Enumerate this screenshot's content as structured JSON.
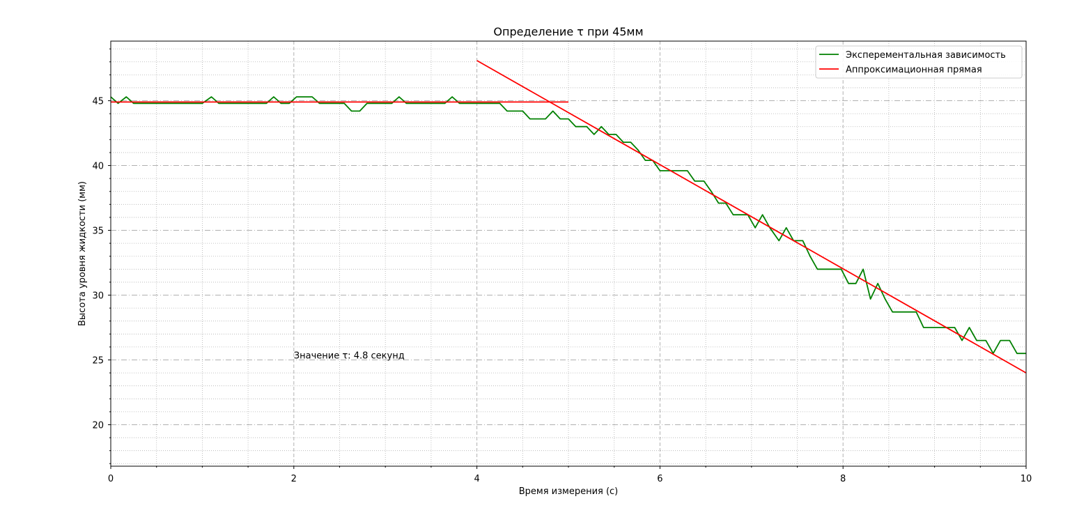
{
  "chart_data": {
    "type": "line",
    "title": "Определение τ при 45мм",
    "xlabel": "Время измерения (с)",
    "ylabel": "Высота уровня жидкости (мм)",
    "xlim": [
      0,
      10
    ],
    "ylim": [
      16.8,
      49.6
    ],
    "x_ticks": [
      0,
      2,
      4,
      6,
      8,
      10
    ],
    "x_tick_labels": [
      "0",
      "2",
      "4",
      "6",
      "8",
      "10"
    ],
    "y_ticks": [
      20,
      25,
      30,
      35,
      40,
      45
    ],
    "y_tick_labels": [
      "20",
      "25",
      "30",
      "35",
      "40",
      "45"
    ],
    "grid": true,
    "legend_position": "top-right",
    "annotation": {
      "text": "Значение τ: 4.8 секунд",
      "x": 2.0,
      "y": 25.1
    },
    "series": [
      {
        "name": "Эксперементальная зависимость",
        "color": "#008000",
        "points": [
          [
            0.0,
            45.3
          ],
          [
            0.08,
            44.8
          ],
          [
            0.17,
            45.3
          ],
          [
            0.25,
            44.8
          ],
          [
            1.0,
            44.8
          ],
          [
            1.1,
            45.3
          ],
          [
            1.18,
            44.8
          ],
          [
            1.7,
            44.8
          ],
          [
            1.78,
            45.3
          ],
          [
            1.86,
            44.8
          ],
          [
            1.95,
            44.8
          ],
          [
            2.03,
            45.3
          ],
          [
            2.2,
            45.3
          ],
          [
            2.28,
            44.8
          ],
          [
            2.55,
            44.8
          ],
          [
            2.63,
            44.2
          ],
          [
            2.72,
            44.2
          ],
          [
            2.8,
            44.8
          ],
          [
            3.07,
            44.8
          ],
          [
            3.15,
            45.3
          ],
          [
            3.23,
            44.8
          ],
          [
            3.65,
            44.8
          ],
          [
            3.73,
            45.3
          ],
          [
            3.81,
            44.8
          ],
          [
            4.25,
            44.8
          ],
          [
            4.33,
            44.2
          ],
          [
            4.5,
            44.2
          ],
          [
            4.58,
            43.6
          ],
          [
            4.75,
            43.6
          ],
          [
            4.83,
            44.2
          ],
          [
            4.91,
            43.6
          ],
          [
            5.0,
            43.6
          ],
          [
            5.08,
            43.0
          ],
          [
            5.2,
            43.0
          ],
          [
            5.28,
            42.4
          ],
          [
            5.36,
            43.0
          ],
          [
            5.44,
            42.4
          ],
          [
            5.52,
            42.4
          ],
          [
            5.6,
            41.8
          ],
          [
            5.68,
            41.8
          ],
          [
            5.76,
            41.2
          ],
          [
            5.84,
            40.4
          ],
          [
            5.92,
            40.4
          ],
          [
            6.0,
            39.6
          ],
          [
            6.3,
            39.6
          ],
          [
            6.38,
            38.8
          ],
          [
            6.48,
            38.8
          ],
          [
            6.56,
            38.0
          ],
          [
            6.64,
            37.1
          ],
          [
            6.72,
            37.1
          ],
          [
            6.8,
            36.2
          ],
          [
            6.96,
            36.2
          ],
          [
            7.04,
            35.2
          ],
          [
            7.12,
            36.2
          ],
          [
            7.2,
            35.2
          ],
          [
            7.3,
            34.2
          ],
          [
            7.38,
            35.2
          ],
          [
            7.46,
            34.2
          ],
          [
            7.56,
            34.2
          ],
          [
            7.64,
            33.0
          ],
          [
            7.72,
            32.0
          ],
          [
            7.98,
            32.0
          ],
          [
            8.06,
            30.9
          ],
          [
            8.14,
            30.9
          ],
          [
            8.22,
            32.0
          ],
          [
            8.3,
            29.7
          ],
          [
            8.38,
            30.9
          ],
          [
            8.46,
            29.7
          ],
          [
            8.54,
            28.7
          ],
          [
            8.8,
            28.7
          ],
          [
            8.88,
            27.5
          ],
          [
            9.22,
            27.5
          ],
          [
            9.3,
            26.5
          ],
          [
            9.38,
            27.5
          ],
          [
            9.46,
            26.5
          ],
          [
            9.56,
            26.5
          ],
          [
            9.64,
            25.5
          ],
          [
            9.72,
            26.5
          ],
          [
            9.82,
            26.5
          ],
          [
            9.9,
            25.5
          ],
          [
            10.0,
            25.5
          ]
        ]
      },
      {
        "name": "Аппроксимационная прямая",
        "color": "#ff0000",
        "segments": [
          [
            [
              0,
              44.9
            ],
            [
              5,
              44.9
            ]
          ],
          [
            [
              4,
              48.1
            ],
            [
              10,
              24.0
            ]
          ]
        ]
      }
    ]
  }
}
